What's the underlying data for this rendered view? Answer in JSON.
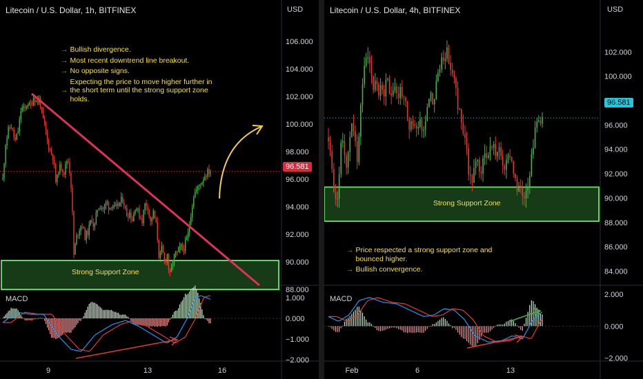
{
  "left": {
    "title": "Litecoin / U.S. Dollar, 1h, BITFINEX",
    "currency": "USD",
    "price_axis": [
      "106.000",
      "104.000",
      "102.000",
      "100.000",
      "98.000",
      "96.000",
      "94.000",
      "92.000",
      "90.000",
      "88.000"
    ],
    "macd_axis": [
      "1.000",
      "0.000",
      "−1.000",
      "−2.000"
    ],
    "time_axis": [
      "9",
      "13",
      "16"
    ],
    "last_price": "96.581",
    "support_label": "Strong Support Zone",
    "macd_label": "MACD",
    "notes": [
      "Bullish divergence.",
      "Most recent downtrend line breakout.",
      "No opposite signs.",
      "Expecting the price to move higher further in the short term until the strong support zone holds."
    ],
    "colors": {
      "up": "#4caf50",
      "down": "#e53935",
      "trendline": "#e0315a",
      "zone_border": "#5cd65c",
      "zone_fill": "#173a17",
      "arrow": "#f5d33a",
      "last_price": "#e0283b"
    }
  },
  "right": {
    "title": "Litecoin / U.S. Dollar, 4h, BITFINEX",
    "currency": "USD",
    "price_axis": [
      "102.000",
      "100.000",
      "98.000",
      "96.000",
      "94.000",
      "92.000",
      "90.000",
      "88.000",
      "86.000",
      "84.000"
    ],
    "macd_axis": [
      "2.000",
      "0.000",
      "−2.000"
    ],
    "time_axis": [
      "Feb",
      "6",
      "13"
    ],
    "last_price": "96.581",
    "support_label": "Strong Support Zone",
    "macd_label": "MACD",
    "notes": [
      "Price respected a strong support zone and bounced higher.",
      "Bullish convergence."
    ],
    "colors": {
      "up": "#4caf50",
      "down": "#e53935",
      "zone_border": "#5cd65c",
      "zone_fill": "#173a17",
      "last_price": "#26c6da"
    }
  },
  "chart_data": [
    {
      "type": "candlestick",
      "title": "Litecoin / U.S. Dollar, 1h, BITFINEX",
      "ylabel": "USD",
      "ylim": [
        87.5,
        107
      ],
      "x_ticks": [
        "9",
        "13",
        "16"
      ],
      "last_price": 96.581,
      "support_zone": [
        88.0,
        90.1
      ],
      "trendline": {
        "from": 102.2,
        "to": 88.3
      },
      "path": [
        [
          0,
          96.0
        ],
        [
          4,
          98.6
        ],
        [
          8,
          99.5
        ],
        [
          12,
          99.9
        ],
        [
          18,
          98.7
        ],
        [
          23,
          99.6
        ],
        [
          27,
          101.2
        ],
        [
          32,
          101.0
        ],
        [
          36,
          101.6
        ],
        [
          40,
          101.2
        ],
        [
          45,
          102.0
        ],
        [
          50,
          101.6
        ],
        [
          54,
          101.8
        ],
        [
          58,
          100.5
        ],
        [
          62,
          99.7
        ],
        [
          66,
          98.6
        ],
        [
          70,
          98.0
        ],
        [
          74,
          97.6
        ],
        [
          78,
          95.6
        ],
        [
          82,
          96.8
        ],
        [
          86,
          96.9
        ],
        [
          90,
          96.5
        ],
        [
          95,
          97.6
        ],
        [
          98,
          96.6
        ],
        [
          101,
          95.0
        ],
        [
          104,
          90.5
        ],
        [
          108,
          91.8
        ],
        [
          112,
          92.4
        ],
        [
          116,
          92.8
        ],
        [
          120,
          91.8
        ],
        [
          125,
          92.2
        ],
        [
          130,
          93.2
        ],
        [
          134,
          92.4
        ],
        [
          138,
          93.8
        ],
        [
          143,
          94.1
        ],
        [
          148,
          93.8
        ],
        [
          152,
          94.4
        ],
        [
          156,
          93.9
        ],
        [
          160,
          94.2
        ],
        [
          165,
          93.8
        ],
        [
          170,
          94.2
        ],
        [
          176,
          94.6
        ],
        [
          181,
          93.4
        ],
        [
          186,
          93.6
        ],
        [
          190,
          93.0
        ],
        [
          194,
          94.1
        ],
        [
          199,
          93.5
        ],
        [
          204,
          93.0
        ],
        [
          208,
          94.2
        ],
        [
          212,
          94.1
        ],
        [
          216,
          92.8
        ],
        [
          220,
          93.6
        ],
        [
          225,
          92.6
        ],
        [
          229,
          90.2
        ],
        [
          233,
          91.0
        ],
        [
          237,
          89.9
        ],
        [
          241,
          90.6
        ],
        [
          244,
          88.8
        ],
        [
          248,
          89.8
        ],
        [
          252,
          90.6
        ],
        [
          256,
          90.6
        ],
        [
          260,
          91.1
        ],
        [
          264,
          90.9
        ],
        [
          268,
          91.4
        ],
        [
          271,
          91.9
        ],
        [
          274,
          93.0
        ],
        [
          277,
          94.0
        ],
        [
          280,
          95.0
        ],
        [
          284,
          95.2
        ],
        [
          288,
          95.6
        ],
        [
          292,
          95.9
        ],
        [
          296,
          96.3
        ],
        [
          300,
          96.5
        ],
        [
          304,
          96.6
        ]
      ],
      "macd": [
        [
          0,
          -0.2
        ],
        [
          20,
          0.3
        ],
        [
          40,
          0.2
        ],
        [
          60,
          0.2
        ],
        [
          80,
          -0.8
        ],
        [
          100,
          -1.5
        ],
        [
          115,
          -1.6
        ],
        [
          135,
          -0.8
        ],
        [
          160,
          -0.3
        ],
        [
          180,
          -0.1
        ],
        [
          200,
          -0.4
        ],
        [
          225,
          -0.9
        ],
        [
          240,
          -1.2
        ],
        [
          255,
          -0.9
        ],
        [
          270,
          0.0
        ],
        [
          282,
          1.0
        ],
        [
          290,
          1.1
        ],
        [
          306,
          0.9
        ]
      ],
      "macd_ylim": [
        -2.0,
        1.4
      ]
    },
    {
      "type": "candlestick",
      "title": "Litecoin / U.S. Dollar, 4h, BITFINEX",
      "ylabel": "USD",
      "ylim": [
        82.5,
        104
      ],
      "x_ticks": [
        "Feb",
        "6",
        "13"
      ],
      "last_price": 96.581,
      "support_zone": [
        88.1,
        90.9
      ],
      "path": [
        [
          0,
          95.0
        ],
        [
          6,
          92.0
        ],
        [
          10,
          89.5
        ],
        [
          14,
          90.5
        ],
        [
          18,
          94.0
        ],
        [
          22,
          95.0
        ],
        [
          26,
          92.5
        ],
        [
          30,
          94.0
        ],
        [
          34,
          96.5
        ],
        [
          38,
          95.5
        ],
        [
          42,
          92.5
        ],
        [
          46,
          96.5
        ],
        [
          50,
          99.5
        ],
        [
          54,
          101.0
        ],
        [
          58,
          102.0
        ],
        [
          62,
          100.5
        ],
        [
          66,
          99.0
        ],
        [
          70,
          100.0
        ],
        [
          74,
          98.5
        ],
        [
          78,
          99.2
        ],
        [
          82,
          98.5
        ],
        [
          86,
          99.8
        ],
        [
          90,
          98.5
        ],
        [
          94,
          99.0
        ],
        [
          98,
          99.5
        ],
        [
          102,
          98.0
        ],
        [
          106,
          99.2
        ],
        [
          110,
          98.0
        ],
        [
          114,
          97.5
        ],
        [
          118,
          95.0
        ],
        [
          122,
          96.5
        ],
        [
          126,
          96.0
        ],
        [
          130,
          95.5
        ],
        [
          134,
          97.0
        ],
        [
          138,
          95.2
        ],
        [
          142,
          96.5
        ],
        [
          146,
          98.0
        ],
        [
          150,
          98.8
        ],
        [
          154,
          97.6
        ],
        [
          158,
          99.5
        ],
        [
          162,
          100.2
        ],
        [
          166,
          101.4
        ],
        [
          170,
          101.8
        ],
        [
          174,
          102.0
        ],
        [
          178,
          101.0
        ],
        [
          182,
          100.0
        ],
        [
          186,
          99.5
        ],
        [
          190,
          97.5
        ],
        [
          194,
          97.0
        ],
        [
          198,
          95.0
        ],
        [
          202,
          95.2
        ],
        [
          206,
          91.8
        ],
        [
          210,
          91.2
        ],
        [
          214,
          92.4
        ],
        [
          218,
          93.0
        ],
        [
          222,
          92.0
        ],
        [
          226,
          92.6
        ],
        [
          230,
          93.8
        ],
        [
          234,
          93.4
        ],
        [
          238,
          94.2
        ],
        [
          242,
          94.5
        ],
        [
          246,
          93.5
        ],
        [
          250,
          94.0
        ],
        [
          254,
          93.2
        ],
        [
          258,
          92.5
        ],
        [
          262,
          92.8
        ],
        [
          266,
          93.8
        ],
        [
          270,
          92.8
        ],
        [
          274,
          91.5
        ],
        [
          278,
          90.2
        ],
        [
          282,
          91.2
        ],
        [
          286,
          90.0
        ],
        [
          290,
          90.8
        ],
        [
          294,
          91.5
        ],
        [
          298,
          93.5
        ],
        [
          302,
          95.0
        ],
        [
          306,
          96.2
        ],
        [
          310,
          96.5
        ],
        [
          314,
          96.58
        ]
      ],
      "macd": [
        [
          0,
          0.6
        ],
        [
          15,
          0.3
        ],
        [
          30,
          0.7
        ],
        [
          45,
          1.6
        ],
        [
          60,
          1.8
        ],
        [
          80,
          1.5
        ],
        [
          100,
          1.4
        ],
        [
          120,
          1.0
        ],
        [
          140,
          0.6
        ],
        [
          155,
          0.7
        ],
        [
          170,
          1.1
        ],
        [
          185,
          1.0
        ],
        [
          200,
          0.4
        ],
        [
          215,
          -0.6
        ],
        [
          235,
          -1.0
        ],
        [
          255,
          -0.9
        ],
        [
          270,
          -0.6
        ],
        [
          285,
          -0.8
        ],
        [
          300,
          0.4
        ],
        [
          314,
          0.9
        ]
      ],
      "macd_ylim": [
        -2.1,
        2.3
      ]
    }
  ]
}
